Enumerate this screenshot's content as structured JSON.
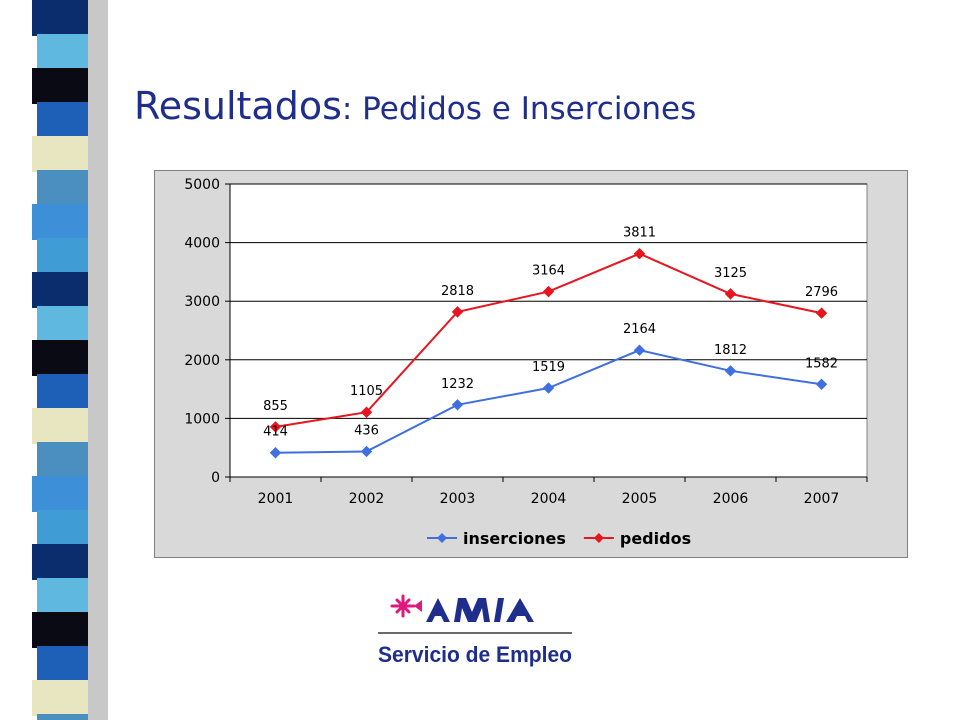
{
  "slide": {
    "title_main": "Resultados",
    "title_sub": ": Pedidos e Inserciones"
  },
  "chart_data": {
    "type": "line",
    "categories": [
      "2001",
      "2002",
      "2003",
      "2004",
      "2005",
      "2006",
      "2007"
    ],
    "series": [
      {
        "name": "inserciones",
        "values": [
          414,
          436,
          1232,
          1519,
          2164,
          1812,
          1582
        ],
        "color": "#3f6fe0",
        "marker": "diamond"
      },
      {
        "name": "pedidos",
        "values": [
          855,
          1105,
          2818,
          3164,
          3811,
          3125,
          2796
        ],
        "color": "#e8141e",
        "marker": "diamond"
      }
    ],
    "y_ticks": [
      "0",
      "1000",
      "2000",
      "3000",
      "4000",
      "5000"
    ],
    "ylim": [
      0,
      5000
    ],
    "grid": true,
    "plot_background": "#ffffff",
    "chart_background": "#d9d9d9",
    "legend": "bottom",
    "data_labels": true
  },
  "logo": {
    "name": "AMIA",
    "caption": "Servicio de Empleo",
    "text_color": "#1f2e8c",
    "mark_color": "#e0177c"
  },
  "strip_colors": [
    "#0b2d6e",
    "#1e5fb8",
    "#3d8fd8",
    "#5fb8e0",
    "#e8e6c0",
    "#3f9cd4",
    "#0a0a14",
    "#4a8fc0"
  ]
}
